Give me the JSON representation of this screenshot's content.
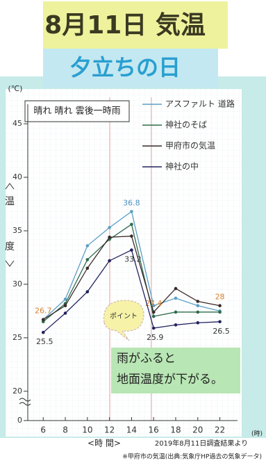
{
  "chart_data": {
    "type": "line",
    "title": "8月11日 気温",
    "subtitle": "夕立ちの日",
    "y_unit": "(℃)",
    "y_axis_label": [
      "温",
      "度"
    ],
    "x_axis_label": "<時 間>",
    "x_unit": "(時)",
    "weather": "晴れ 晴れ 雲後一時雨",
    "callout": "ポイント",
    "note": [
      "雨がふると",
      "地面温度が下がる。"
    ],
    "source": "2019年8月11日調査結果より",
    "footnote": "※甲府市の気温(出典:気象庁HP過去の気象データ)",
    "x": [
      6,
      8,
      10,
      12,
      14,
      16,
      18,
      20,
      22
    ],
    "xlim": [
      4.6,
      23.6
    ],
    "xticks": [
      6,
      8,
      10,
      12,
      14,
      16,
      18,
      20,
      22
    ],
    "ylim": [
      18.3,
      46.5
    ],
    "yticks": [
      0,
      20,
      25,
      30,
      35,
      40,
      45
    ],
    "y_break": true,
    "series": [
      {
        "name": "アスファルト 道路",
        "color": "#5a9fc4",
        "label_color": "#4a8fc0",
        "values": [
          26.7,
          28.6,
          33.6,
          35.3,
          36.8,
          28.0,
          28.7,
          28.0,
          27.5
        ],
        "value_labels": [
          null,
          null,
          null,
          null,
          "36.8",
          null,
          null,
          null,
          null
        ]
      },
      {
        "name": "神社のそば",
        "color": "#2e6b4c",
        "label_color": "#2e6b4c",
        "values": [
          26.5,
          28.2,
          32.3,
          34.2,
          35.6,
          27.0,
          27.4,
          27.4,
          27.4
        ]
      },
      {
        "name": "甲府市の気温",
        "color": "#3a2a2a",
        "label_color": "#d9822b",
        "values": [
          26.7,
          28.0,
          31.5,
          34.4,
          34.5,
          27.4,
          29.6,
          28.4,
          28
        ],
        "value_labels": [
          "26.7",
          null,
          null,
          null,
          null,
          "27.4",
          null,
          null,
          "28"
        ]
      },
      {
        "name": "神社の中",
        "color": "#22225e",
        "label_color": "#333",
        "values": [
          25.5,
          27.3,
          29.3,
          32.2,
          33.2,
          25.9,
          26.2,
          26.4,
          26.5
        ],
        "value_labels": [
          "25.5",
          null,
          null,
          null,
          "33.2",
          "25.9",
          null,
          null,
          "26.5"
        ]
      }
    ]
  }
}
